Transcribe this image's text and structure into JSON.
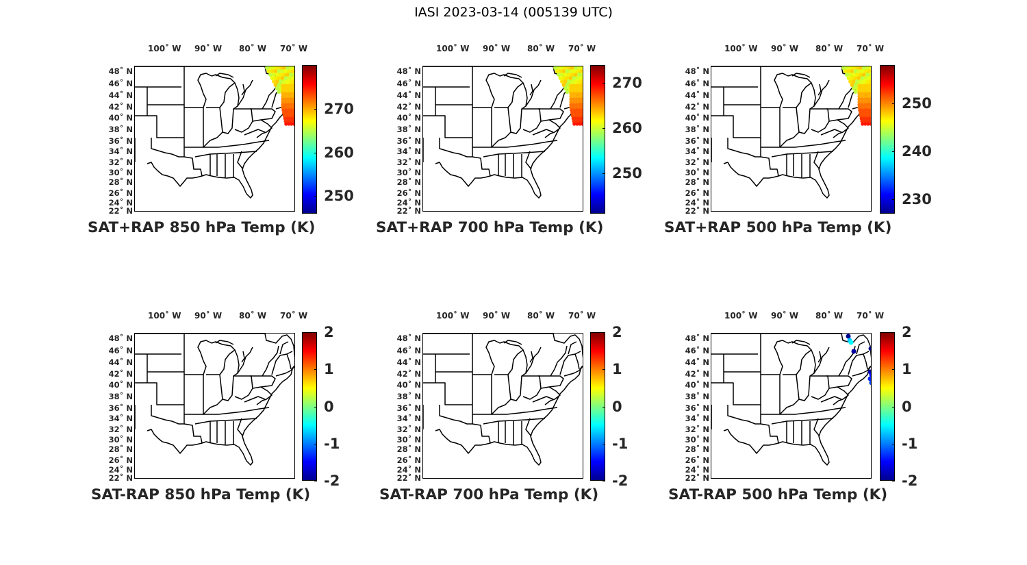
{
  "figure_title": "IASI 2023-03-14 (005139 UTC)",
  "lon_ticks": [
    "100˚ W",
    "90˚ W",
    "80˚ W",
    "70˚ W"
  ],
  "lat_ticks": [
    "48˚ N",
    "46˚ N",
    "44˚ N",
    "42˚ N",
    "40˚ N",
    "38˚ N",
    "36˚ N",
    "34˚ N",
    "32˚ N",
    "30˚ N",
    "28˚ N",
    "26˚ N",
    "24˚ N",
    "22˚ N"
  ],
  "colormap": "jet",
  "panels": [
    {
      "id": "sat-rap-850-sum",
      "title": "SAT+RAP 850 hPa Temp (K)",
      "cbar_ticks": [
        "270",
        "260",
        "250"
      ],
      "cbar_range": [
        246,
        280
      ],
      "overlay": "swath-warm"
    },
    {
      "id": "sat-rap-700-sum",
      "title": "SAT+RAP 700 hPa Temp (K)",
      "cbar_ticks": [
        "270",
        "260",
        "250"
      ],
      "cbar_range": [
        241,
        274
      ],
      "overlay": "swath-warm"
    },
    {
      "id": "sat-rap-500-sum",
      "title": "SAT+RAP 500 hPa Temp (K)",
      "cbar_ticks": [
        "250",
        "240",
        "230"
      ],
      "cbar_range": [
        227,
        258
      ],
      "overlay": "swath-warm"
    },
    {
      "id": "sat-rap-850-diff",
      "title": "SAT-RAP 850 hPa Temp (K)",
      "cbar_ticks": [
        "2",
        "1",
        "0",
        "-1",
        "-2"
      ],
      "cbar_range": [
        -2,
        2
      ],
      "overlay": "none"
    },
    {
      "id": "sat-rap-700-diff",
      "title": "SAT-RAP 700 hPa Temp (K)",
      "cbar_ticks": [
        "2",
        "1",
        "0",
        "-1",
        "-2"
      ],
      "cbar_range": [
        -2,
        2
      ],
      "overlay": "none"
    },
    {
      "id": "sat-rap-500-diff",
      "title": "SAT-RAP 500 hPa Temp (K)",
      "cbar_ticks": [
        "2",
        "1",
        "0",
        "-1",
        "-2"
      ],
      "cbar_range": [
        -2,
        2
      ],
      "overlay": "dots-cold"
    }
  ]
}
